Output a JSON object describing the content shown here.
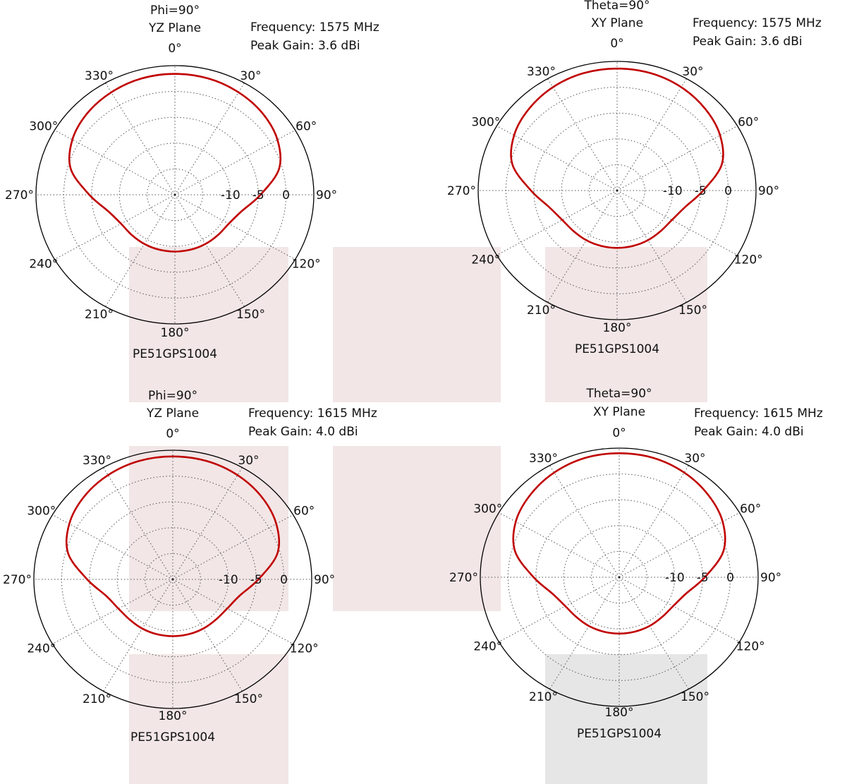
{
  "theme": {
    "trace_color": "#c00000",
    "outline_color": "#000000",
    "grid_color": "#555555",
    "panel_shade": "#f2e6e6",
    "panel_shade_grey": "#e6e6e6"
  },
  "chart_data": [
    {
      "type": "polar-line",
      "title": "Phi=90°",
      "subtitle": "YZ Plane",
      "frequency_label": "Frequency: 1575 MHz",
      "gain_label": "Peak Gain: 3.6 dBi",
      "model_label": "PE51GPS1004",
      "angle_ticks": [
        "0°",
        "30°",
        "60°",
        "90°",
        "120°",
        "150°",
        "180°",
        "210°",
        "240°",
        "270°",
        "300°",
        "330°"
      ],
      "radial_ticks": [
        "-10",
        "-5",
        "0"
      ],
      "radial_values": [
        -10,
        -5,
        0
      ],
      "rlim": [
        -20,
        5
      ],
      "grid": true,
      "series": [
        {
          "theta_deg": [
            0,
            15,
            30,
            45,
            60,
            75,
            90,
            105,
            120,
            135,
            150,
            165,
            180,
            195,
            210,
            225,
            240,
            255,
            270,
            285,
            300,
            315,
            330,
            345
          ],
          "gain_dbi": [
            3.4,
            3.3,
            2.9,
            2.3,
            1.3,
            -0.6,
            -4.6,
            -7.6,
            -8.8,
            -9.0,
            -9.0,
            -9.0,
            -9.0,
            -9.0,
            -9.0,
            -9.0,
            -8.8,
            -7.6,
            -4.6,
            -0.6,
            1.3,
            2.3,
            2.9,
            3.3
          ]
        }
      ]
    },
    {
      "type": "polar-line",
      "title": "Theta=90°",
      "subtitle": "XY Plane",
      "frequency_label": "Frequency: 1575 MHz",
      "gain_label": "Peak Gain: 3.6 dBi",
      "model_label": "PE51GPS1004",
      "angle_ticks": [
        "0°",
        "30°",
        "60°",
        "90°",
        "120°",
        "150°",
        "180°",
        "210°",
        "240°",
        "270°",
        "300°",
        "330°"
      ],
      "radial_ticks": [
        "-10",
        "-5",
        "0"
      ],
      "radial_values": [
        -10,
        -5,
        0
      ],
      "rlim": [
        -20,
        5
      ],
      "grid": true,
      "series": [
        {
          "theta_deg": [
            0,
            15,
            30,
            45,
            60,
            75,
            90,
            105,
            120,
            135,
            150,
            165,
            180,
            195,
            210,
            225,
            240,
            255,
            270,
            285,
            300,
            315,
            330,
            345
          ],
          "gain_dbi": [
            3.6,
            3.5,
            3.1,
            2.4,
            1.4,
            -0.5,
            -4.5,
            -7.4,
            -8.6,
            -8.9,
            -8.9,
            -8.9,
            -8.9,
            -8.9,
            -8.9,
            -8.9,
            -8.6,
            -7.4,
            -4.5,
            -0.5,
            1.4,
            2.4,
            3.1,
            3.5
          ]
        }
      ]
    },
    {
      "type": "polar-line",
      "title": "Phi=90°",
      "subtitle": "YZ Plane",
      "frequency_label": "Frequency: 1615 MHz",
      "gain_label": "Peak Gain: 4.0 dBi",
      "model_label": "PE51GPS1004",
      "angle_ticks": [
        "0°",
        "30°",
        "60°",
        "90°",
        "120°",
        "150°",
        "180°",
        "210°",
        "240°",
        "270°",
        "300°",
        "330°"
      ],
      "radial_ticks": [
        "-10",
        "-5",
        "0"
      ],
      "radial_values": [
        -10,
        -5,
        0
      ],
      "rlim": [
        -20,
        5
      ],
      "grid": true,
      "series": [
        {
          "theta_deg": [
            0,
            15,
            30,
            45,
            60,
            75,
            90,
            105,
            120,
            135,
            150,
            165,
            180,
            195,
            210,
            225,
            240,
            255,
            270,
            285,
            300,
            315,
            330,
            345
          ],
          "gain_dbi": [
            3.8,
            3.7,
            3.3,
            2.6,
            1.5,
            -0.5,
            -4.6,
            -7.6,
            -8.7,
            -9.0,
            -9.0,
            -9.0,
            -9.0,
            -9.0,
            -9.0,
            -9.0,
            -8.7,
            -7.6,
            -4.6,
            -0.5,
            1.5,
            2.6,
            3.3,
            3.7
          ]
        }
      ]
    },
    {
      "type": "polar-line",
      "title": "Theta=90°",
      "subtitle": "XY Plane",
      "frequency_label": "Frequency: 1615 MHz",
      "gain_label": "Peak Gain: 4.0 dBi",
      "model_label": "PE51GPS1004",
      "angle_ticks": [
        "0°",
        "30°",
        "60°",
        "90°",
        "120°",
        "150°",
        "180°",
        "210°",
        "240°",
        "270°",
        "300°",
        "330°"
      ],
      "radial_ticks": [
        "-10",
        "-5",
        "0"
      ],
      "radial_values": [
        -10,
        -5,
        0
      ],
      "rlim": [
        -20,
        5
      ],
      "grid": true,
      "series": [
        {
          "theta_deg": [
            0,
            15,
            30,
            45,
            60,
            75,
            90,
            105,
            120,
            135,
            150,
            165,
            180,
            195,
            210,
            225,
            240,
            255,
            270,
            285,
            300,
            315,
            330,
            345
          ],
          "gain_dbi": [
            4.0,
            3.9,
            3.4,
            2.6,
            1.5,
            -0.6,
            -4.6,
            -7.6,
            -8.8,
            -9.1,
            -9.1,
            -9.1,
            -9.1,
            -9.1,
            -9.1,
            -9.1,
            -8.8,
            -7.6,
            -4.6,
            -0.6,
            1.5,
            2.6,
            3.4,
            3.9
          ]
        }
      ]
    }
  ]
}
